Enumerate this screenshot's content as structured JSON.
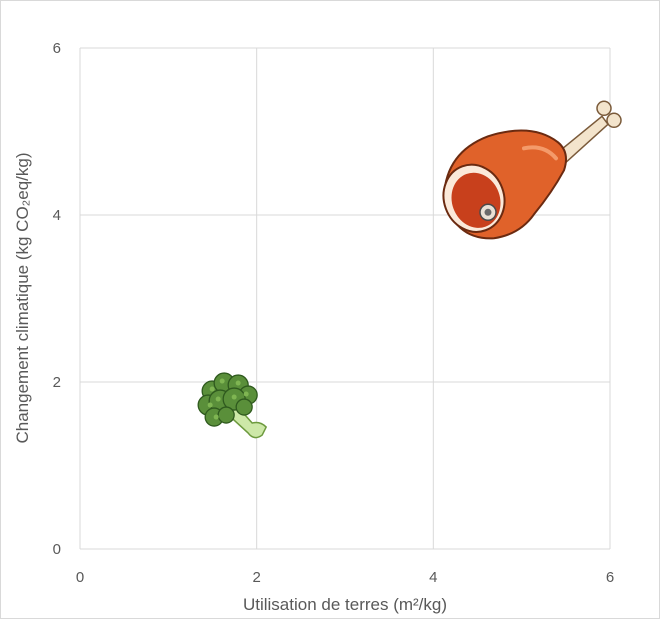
{
  "chart_data": {
    "type": "scatter",
    "title": "",
    "xlabel": "Utilisation de terres (m²/kg)",
    "ylabel": "Changement climatique (kg CO₂eq/kg)",
    "xlim": [
      0,
      6
    ],
    "ylim": [
      0,
      6
    ],
    "x_ticks": [
      "0",
      "2",
      "4",
      "6"
    ],
    "y_ticks": [
      "0",
      "2",
      "4",
      "6"
    ],
    "grid": true,
    "legend": "none",
    "points": [
      {
        "x": 1.7,
        "y": 1.7,
        "marker": "broccoli-icon"
      },
      {
        "x": 4.8,
        "y": 4.2,
        "marker": "ham-leg-icon"
      }
    ],
    "colors": {
      "grid": "#d9d9d9",
      "text": "#595959",
      "broccoli": "#5a8f3a",
      "meat": "#e0622a"
    }
  }
}
